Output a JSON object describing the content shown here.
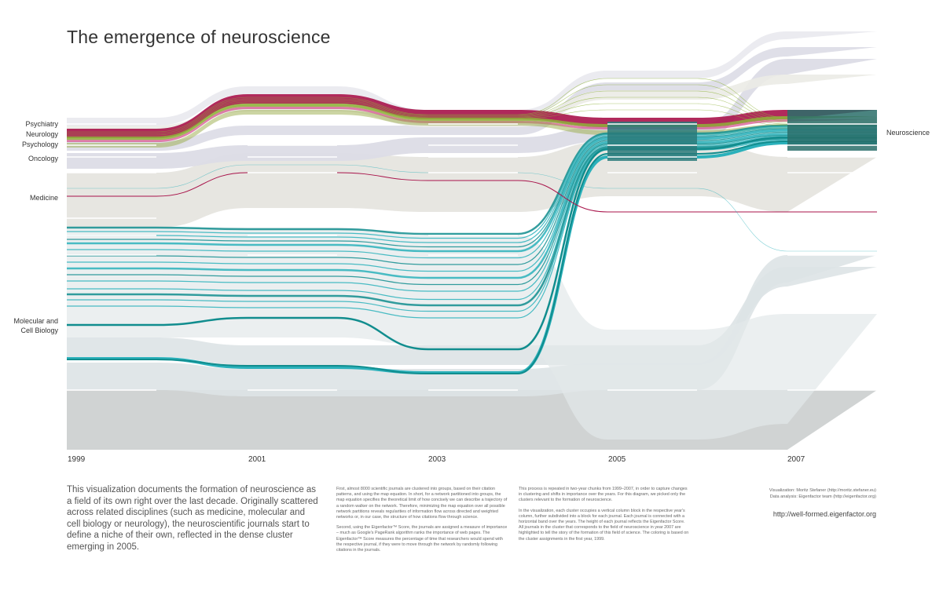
{
  "title": "The emergence of neuroscience",
  "chart_data": {
    "type": "alluvial",
    "title": "The emergence of neuroscience",
    "years": [
      "1999",
      "2001",
      "2003",
      "2005",
      "2007"
    ],
    "clusters_1999": [
      "Psychiatry",
      "Neurology",
      "Psychology",
      "Oncology",
      "Medicine",
      "Molecular and Cell Biology"
    ],
    "clusters_2007": [
      "Neuroscience"
    ],
    "series": [
      {
        "name": "Psychiatry",
        "color": "#a8134a"
      },
      {
        "name": "Neurology",
        "color": "#8fb23a"
      },
      {
        "name": "Psychology",
        "color": "#c9c9c9"
      },
      {
        "name": "Oncology",
        "color": "#d9d9e3"
      },
      {
        "name": "Medicine",
        "color": "#e4e3dc"
      },
      {
        "name": "Molecular and Cell Biology",
        "color": "#2bb1bb"
      }
    ]
  },
  "labels": {
    "left": {
      "psychiatry": "Psychiatry",
      "neurology": "Neurology",
      "psychology": "Psychology",
      "oncology": "Oncology",
      "medicine": "Medicine",
      "molbio_1": "Molecular and",
      "molbio_2": "Cell Biology"
    },
    "right": "Neuroscience"
  },
  "intro": "This visualization documents the formation of neuroscience as a field of its own right over the last decade. Originally scattered across related disciplines (such as medicine, molecular and cell biology or neurology), the neuroscientific journals start to define a niche of their own, reflected in the dense cluster emerging in 2005.",
  "col1": {
    "p1": "First, almost 8000 scientific journals are clustered into groups, based on their citation patterns, and using the map equation. In short, for a network partitioned into groups, the map equation specifies the theoretical limit of how concisely we can describe a trajectory of a random walker on the network. Therefore, minimizing the map equation over all possible network partitions reveals regularities of information flow across directed and weighted networks or, in our case, the structure of how citations flow through science.",
    "p2": "Second, using the Eigenfactor™ Score, the journals are assigned a measure of importance – much as Google's PageRank algorithm ranks the importance of web pages. The Eigenfactor™ Score measures the percentage of time that researchers would spend with the respective journal, if they were to move through the network by randomly following citations in the journals."
  },
  "col2": {
    "p1": "This process is repeated in two-year chunks from 1999–2007, in order to capture changes in clustering and shifts in importance over the years. For this diagram, we picked only the clusters relevant to the formation of neuroscience.",
    "p2": "In the visualization, each cluster occupies a vertical column block in the respective year's column, further subdivided into a block for each journal. Each journal is connected with a horizontal band over the years. The height of each journal reflects the Eigenfactor Score. All journals in the cluster that corresponds to the field of neuroscience in year 2007 are highlighted to tell the story of the formation of this field of science. The coloring is based on the cluster assignments in the first year, 1999."
  },
  "credits": {
    "line1": "Visualization: Moritz Stefaner (http://moritz.stefaner.eu)",
    "line2": "Data analysis: Eigenfactor team (http://eigenfactor.org)",
    "url": "http://well-formed.eigenfactor.org"
  },
  "colors": {
    "magenta": "#a8134a",
    "green": "#8fb23a",
    "teal": "#2bb1bb",
    "darkteal": "#118d8e",
    "lavender": "#dcdce6",
    "beige": "#e6e5df",
    "gray": "#c8cbcb",
    "paleblue": "#dde3e5"
  }
}
